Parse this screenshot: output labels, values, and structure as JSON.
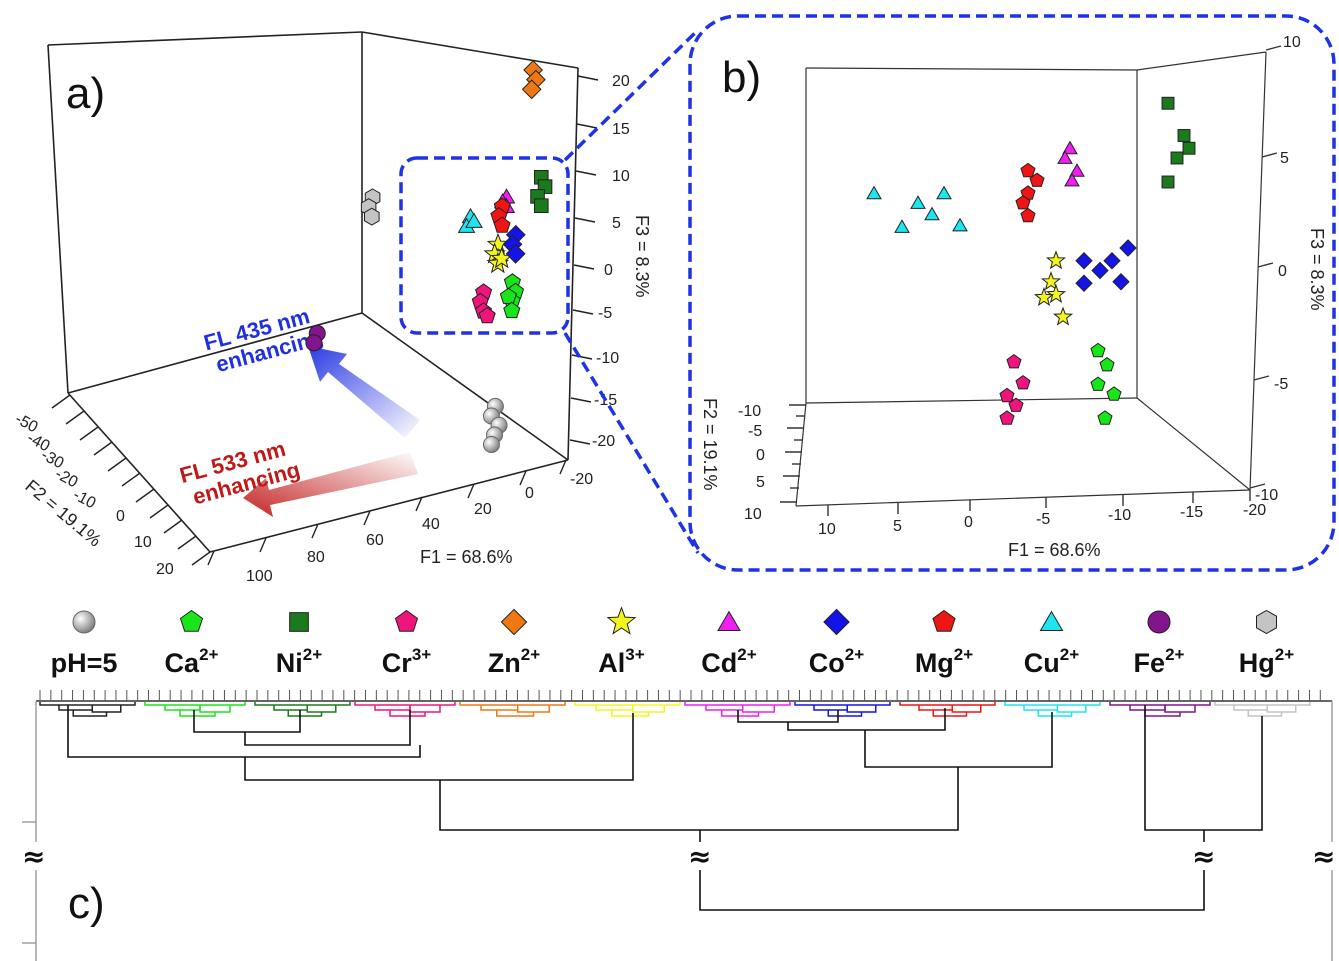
{
  "colors": {
    "pH=5": "#a7a7a7",
    "Ca2+": "#19e619",
    "Ni2+": "#1b7a1b",
    "Cr3+": "#f0147d",
    "Zn2+": "#f07814",
    "Al3+": "#f5f51e",
    "Cd2+": "#f01ef0",
    "Co2+": "#1414e6",
    "Mg2+": "#f01414",
    "Cu2+": "#1ee6f0",
    "Fe2+": "#82148c",
    "Hg2+": "#c4c4c4",
    "zoom_box": "#1e32e6",
    "arrow_blue": "#2030e0",
    "arrow_red": "#c01818"
  },
  "panels": {
    "a": "a)",
    "b": "b)",
    "c": "c)"
  },
  "arrows": {
    "blue": [
      "FL 435 nm",
      "enhancing"
    ],
    "red": [
      "FL 533 nm",
      "enhancing"
    ]
  },
  "legend": [
    {
      "name": "pH=5",
      "base": "pH=5",
      "sup": "",
      "shape": "sphere",
      "icon": "gray-sphere-icon"
    },
    {
      "name": "Ca2+",
      "base": "Ca",
      "sup": "2+",
      "shape": "pentagon",
      "icon": "green-pentagon-icon"
    },
    {
      "name": "Ni2+",
      "base": "Ni",
      "sup": "2+",
      "shape": "square",
      "icon": "dark-green-square-icon"
    },
    {
      "name": "Cr3+",
      "base": "Cr",
      "sup": "3+",
      "shape": "pentagon",
      "icon": "pink-pentagon-icon"
    },
    {
      "name": "Zn2+",
      "base": "Zn",
      "sup": "2+",
      "shape": "diamond",
      "icon": "orange-diamond-icon"
    },
    {
      "name": "Al3+",
      "base": "Al",
      "sup": "3+",
      "shape": "star",
      "icon": "yellow-star-icon"
    },
    {
      "name": "Cd2+",
      "base": "Cd",
      "sup": "2+",
      "shape": "triangle",
      "icon": "magenta-triangle-icon"
    },
    {
      "name": "Co2+",
      "base": "Co",
      "sup": "2+",
      "shape": "diamond",
      "icon": "blue-diamond-icon"
    },
    {
      "name": "Mg2+",
      "base": "Mg",
      "sup": "2+",
      "shape": "pentagon",
      "icon": "red-pentagon-icon"
    },
    {
      "name": "Cu2+",
      "base": "Cu",
      "sup": "2+",
      "shape": "triangle",
      "icon": "cyan-triangle-icon"
    },
    {
      "name": "Fe2+",
      "base": "Fe",
      "sup": "2+",
      "shape": "circle",
      "icon": "purple-circle-icon"
    },
    {
      "name": "Hg2+",
      "base": "Hg",
      "sup": "2+",
      "shape": "hexagon",
      "icon": "gray-hexagon-icon"
    }
  ],
  "chart_data": [
    {
      "type": "scatter",
      "panel": "a)",
      "dimensions": 3,
      "xlabel": "F1 = 68.6%",
      "ylabel": "F2 = 19.1%",
      "zlabel": "F3 = 8.3%",
      "x_ticks": [
        "100",
        "80",
        "60",
        "40",
        "20",
        "0",
        "-20"
      ],
      "y_ticks": [
        "-50",
        "-40",
        "-30",
        "-20",
        "-10",
        "0",
        "10",
        "20"
      ],
      "z_ticks": [
        "20",
        "15",
        "10",
        "5",
        "0",
        "-5",
        "-10",
        "-15",
        "-20"
      ],
      "xlim": [
        100,
        -20
      ],
      "ylim": [
        -50,
        20
      ],
      "zlim": [
        -20,
        20
      ],
      "series": [
        {
          "name": "pH=5",
          "points": [
            [
              4,
              5,
              -14
            ],
            [
              5,
              6,
              -15
            ],
            [
              3,
              4,
              -16
            ],
            [
              4,
              7,
              -17
            ],
            [
              5,
              5,
              -18
            ]
          ]
        },
        {
          "name": "Ca2+",
          "points": [
            [
              0,
              0,
              -1
            ],
            [
              -1,
              1,
              -2
            ],
            [
              0,
              0,
              -3
            ],
            [
              1,
              1,
              -2.5
            ],
            [
              0,
              1,
              -4
            ]
          ]
        },
        {
          "name": "Ni2+",
          "points": [
            [
              -8,
              2,
              10
            ],
            [
              -9,
              1,
              9
            ],
            [
              -7,
              2,
              8
            ],
            [
              -8,
              1,
              7
            ]
          ]
        },
        {
          "name": "Cr3+",
          "points": [
            [
              8,
              1,
              -2
            ],
            [
              9,
              0,
              -3
            ],
            [
              8,
              1,
              -4
            ],
            [
              7,
              0,
              -4.5
            ]
          ]
        },
        {
          "name": "Zn2+",
          "points": [
            [
              -2,
              -38,
              21
            ],
            [
              -3,
              -36,
              20
            ],
            [
              -2,
              -34,
              19
            ]
          ]
        },
        {
          "name": "Al3+",
          "points": [
            [
              4,
              2,
              3
            ],
            [
              5,
              1,
              2
            ],
            [
              4,
              2,
              1
            ],
            [
              3,
              1,
              1.5
            ]
          ]
        },
        {
          "name": "Cd2+",
          "points": [
            [
              2,
              -1,
              8
            ],
            [
              3,
              0,
              7.5
            ],
            [
              2,
              -1,
              7
            ]
          ]
        },
        {
          "name": "Co2+",
          "points": [
            [
              -1,
              2,
              4
            ],
            [
              0,
              1,
              3
            ],
            [
              -1,
              2,
              2
            ]
          ]
        },
        {
          "name": "Mg2+",
          "points": [
            [
              3,
              1,
              7
            ],
            [
              4,
              0,
              6
            ],
            [
              3,
              1,
              5
            ]
          ]
        },
        {
          "name": "Cu2+",
          "points": [
            [
              12,
              0,
              6
            ],
            [
              13,
              1,
              5
            ],
            [
              11,
              0,
              5.5
            ]
          ]
        },
        {
          "name": "Fe2+",
          "points": [
            [
              55,
              -2,
              -6
            ],
            [
              56,
              -3,
              -7
            ]
          ]
        },
        {
          "name": "Hg2+",
          "points": [
            [
              42,
              -28,
              8
            ],
            [
              43,
              -27,
              7
            ],
            [
              42,
              -26,
              6
            ]
          ]
        }
      ]
    },
    {
      "type": "scatter",
      "panel": "b)",
      "dimensions": 3,
      "xlabel": "F1 = 68.6%",
      "ylabel": "F2 = 19.1%",
      "zlabel": "F3 = 8.3%",
      "x_ticks": [
        "10",
        "5",
        "0",
        "-5",
        "-10",
        "-15",
        "-20"
      ],
      "y_ticks": [
        "-10",
        "-5",
        "0",
        "5",
        "10"
      ],
      "z_ticks": [
        "10",
        "5",
        "0",
        "-5",
        "-10"
      ],
      "xlim": [
        10,
        -20
      ],
      "ylim": [
        -10,
        10
      ],
      "zlim": [
        -10,
        10
      ],
      "series": [
        {
          "name": "Ca2+",
          "points": [
            [
              -9,
              0,
              -3.5
            ],
            [
              -9.5,
              1,
              -4.2
            ],
            [
              -9,
              0,
              -5
            ],
            [
              -10,
              1,
              -5.5
            ],
            [
              -9.5,
              0,
              -6.5
            ]
          ]
        },
        {
          "name": "Ni2+",
          "points": [
            [
              -14,
              0,
              7.5
            ],
            [
              -15,
              1,
              6
            ],
            [
              -15.5,
              0,
              5.5
            ],
            [
              -14.5,
              1,
              5
            ],
            [
              -14,
              0,
              4
            ]
          ]
        },
        {
          "name": "Cr3+",
          "points": [
            [
              -3,
              0,
              -4
            ],
            [
              -3.5,
              1,
              -5
            ],
            [
              -2.5,
              0,
              -5.5
            ],
            [
              -3,
              1,
              -6
            ],
            [
              -2.5,
              0,
              -6.5
            ]
          ]
        },
        {
          "name": "Al3+",
          "points": [
            [
              -6,
              0,
              0.5
            ],
            [
              -5.5,
              1,
              -0.5
            ],
            [
              -6,
              0,
              -1
            ],
            [
              -5,
              1,
              -1.2
            ],
            [
              -6.5,
              0,
              -2
            ]
          ]
        },
        {
          "name": "Cd2+",
          "points": [
            [
              -7,
              0,
              5.5
            ],
            [
              -6.5,
              1,
              5
            ],
            [
              -7.5,
              0,
              4.5
            ],
            [
              -7,
              1,
              4
            ]
          ]
        },
        {
          "name": "Co2+",
          "points": [
            [
              -8,
              0,
              0.5
            ],
            [
              -9,
              1,
              0
            ],
            [
              -10,
              0,
              0.5
            ],
            [
              -11,
              1,
              1
            ],
            [
              -8,
              0,
              -0.5
            ],
            [
              -10.5,
              1,
              -0.5
            ]
          ]
        },
        {
          "name": "Mg2+",
          "points": [
            [
              -4,
              0,
              4.5
            ],
            [
              -4.5,
              1,
              4
            ],
            [
              -4,
              0,
              3.5
            ],
            [
              -3.5,
              1,
              3
            ],
            [
              -4,
              0,
              2.5
            ]
          ]
        },
        {
          "name": "Cu2+",
          "points": [
            [
              7,
              0,
              3.5
            ],
            [
              4,
              1,
              3
            ],
            [
              2,
              0,
              3.5
            ],
            [
              3,
              1,
              2.5
            ],
            [
              5,
              0,
              2
            ],
            [
              1,
              1,
              2
            ]
          ]
        }
      ]
    },
    {
      "type": "dendrogram",
      "panel": "c)",
      "leaf_groups": [
        "pH=5",
        "Ca2+",
        "Ni2+",
        "Cr3+",
        "Zn2+",
        "Al3+",
        "Cd2+",
        "Co2+",
        "Mg2+",
        "Cu2+",
        "Fe2+",
        "Hg2+"
      ],
      "axis_break_symbol": "≈",
      "merges": [
        {
          "children": [
            "Ca2+",
            "Ni2+"
          ],
          "level": 1
        },
        {
          "children": [
            "Ca2+,Ni2+",
            "Cr3+"
          ],
          "level": 2
        },
        {
          "children": [
            "pH=5",
            "Ca2+,Ni2+,Cr3+"
          ],
          "level": 3
        },
        {
          "children": [
            "pH=5,Ca2+,Ni2+,Cr3+",
            "Zn2+,Al3+"
          ],
          "level": 4
        },
        {
          "children": [
            "Cd2+",
            "Co2+"
          ],
          "level": 1
        },
        {
          "children": [
            "Cd2+,Co2+",
            "Mg2+"
          ],
          "level": 2
        },
        {
          "children": [
            "Cd2+,Co2+,Mg2+",
            "Cu2+"
          ],
          "level": 3
        },
        {
          "children": [
            "group1",
            "group2"
          ],
          "level": 5
        },
        {
          "children": [
            "Fe2+",
            "Hg2+"
          ],
          "level": 6
        },
        {
          "children": [
            "group1+group2",
            "Fe2+,Hg2+"
          ],
          "level": 7
        }
      ]
    }
  ]
}
